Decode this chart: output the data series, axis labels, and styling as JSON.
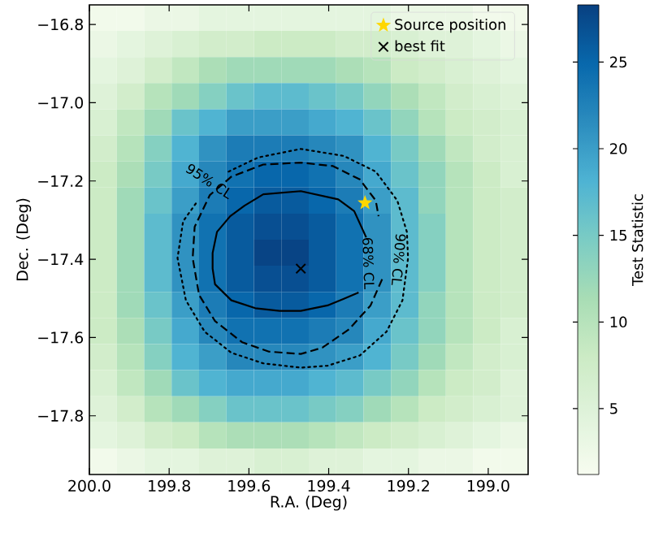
{
  "chart_data": {
    "type": "heatmap",
    "xlabel": "R.A. (Deg)",
    "ylabel": "Dec. (Deg)",
    "clabel": "Test Statistic",
    "xlim": [
      200.0,
      198.9
    ],
    "ylim": [
      -17.95,
      -16.75
    ],
    "xticks": [
      {
        "value": 200.0,
        "label": "200.0"
      },
      {
        "value": 199.8,
        "label": "199.8"
      },
      {
        "value": 199.6,
        "label": "199.6"
      },
      {
        "value": 199.4,
        "label": "199.4"
      },
      {
        "value": 199.2,
        "label": "199.2"
      },
      {
        "value": 199.0,
        "label": "199.0"
      }
    ],
    "yticks": [
      {
        "value": -16.8,
        "label": "−16.8"
      },
      {
        "value": -17.0,
        "label": "−17.0"
      },
      {
        "value": -17.2,
        "label": "−17.2"
      },
      {
        "value": -17.4,
        "label": "−17.4"
      },
      {
        "value": -17.6,
        "label": "−17.6"
      },
      {
        "value": -17.8,
        "label": "−17.8"
      }
    ],
    "clim": [
      1.2,
      28.3
    ],
    "cticks": [
      5,
      10,
      15,
      20,
      25
    ],
    "cells": [
      [
        2,
        2,
        3,
        3,
        4,
        4,
        4,
        4,
        4,
        4,
        4,
        3,
        3,
        3,
        2,
        2
      ],
      [
        3,
        4,
        5,
        6,
        7,
        7,
        8,
        8,
        8,
        7,
        7,
        6,
        5,
        5,
        4,
        3
      ],
      [
        4,
        5,
        7,
        9,
        11,
        12,
        12,
        12,
        12,
        11,
        10,
        8,
        7,
        6,
        5,
        4
      ],
      [
        5,
        7,
        10,
        12,
        14,
        16,
        17,
        17,
        16,
        15,
        13,
        11,
        9,
        7,
        6,
        5
      ],
      [
        6,
        9,
        12,
        16,
        18,
        20,
        20,
        20,
        19,
        18,
        16,
        13,
        10,
        8,
        7,
        6
      ],
      [
        7,
        10,
        14,
        18,
        21,
        23,
        23,
        23,
        22,
        21,
        18,
        15,
        12,
        9,
        7,
        6
      ],
      [
        8,
        11,
        15,
        19,
        22,
        24,
        25,
        25,
        24,
        22,
        19,
        16,
        13,
        10,
        8,
        6
      ],
      [
        8,
        12,
        16,
        20,
        23,
        25,
        26,
        26,
        25,
        23,
        20,
        17,
        13,
        10,
        8,
        7
      ],
      [
        8,
        12,
        17,
        21,
        24,
        26,
        27,
        27,
        26,
        24,
        21,
        17,
        14,
        10,
        8,
        7
      ],
      [
        8,
        12,
        17,
        21,
        24,
        26,
        28,
        28,
        26,
        24,
        21,
        17,
        14,
        10,
        8,
        7
      ],
      [
        8,
        12,
        17,
        21,
        24,
        26,
        27,
        27,
        26,
        24,
        21,
        17,
        14,
        10,
        8,
        7
      ],
      [
        8,
        12,
        16,
        20,
        23,
        25,
        26,
        26,
        25,
        23,
        20,
        17,
        13,
        10,
        8,
        7
      ],
      [
        8,
        11,
        15,
        19,
        22,
        24,
        24,
        24,
        23,
        22,
        19,
        16,
        13,
        10,
        8,
        6
      ],
      [
        7,
        10,
        14,
        18,
        20,
        22,
        22,
        22,
        21,
        20,
        18,
        15,
        12,
        9,
        7,
        6
      ],
      [
        6,
        9,
        12,
        16,
        18,
        19,
        19,
        19,
        18,
        17,
        15,
        13,
        10,
        8,
        7,
        5
      ],
      [
        5,
        7,
        10,
        12,
        14,
        16,
        16,
        16,
        15,
        14,
        12,
        10,
        8,
        7,
        6,
        5
      ],
      [
        4,
        5,
        7,
        8,
        10,
        11,
        11,
        11,
        10,
        9,
        8,
        7,
        6,
        5,
        4,
        3
      ],
      [
        2,
        3,
        4,
        4,
        5,
        5,
        6,
        6,
        5,
        5,
        4,
        4,
        3,
        3,
        2,
        2
      ]
    ],
    "series": [
      {
        "type": "line",
        "color": "#000000",
        "line_style": "solid",
        "x": [
          199.306,
          199.336,
          199.376,
          199.47,
          199.564,
          199.611,
          199.647,
          199.68,
          199.691,
          199.691,
          199.685,
          199.644,
          199.584,
          199.523,
          199.47,
          199.403,
          199.362,
          199.325
        ],
        "values": [
          -17.344,
          -17.277,
          -17.247,
          -17.226,
          -17.234,
          -17.263,
          -17.29,
          -17.33,
          -17.384,
          -17.424,
          -17.464,
          -17.505,
          -17.525,
          -17.532,
          -17.532,
          -17.518,
          -17.501,
          -17.485
        ]
      },
      {
        "type": "line",
        "color": "#000000",
        "line_style": "dashed",
        "x": [
          199.266,
          199.295,
          199.349,
          199.416,
          199.47,
          199.55,
          199.617,
          199.685,
          199.725,
          199.741,
          199.736,
          199.698,
          199.644,
          199.564,
          199.47,
          199.389,
          199.322,
          199.282,
          199.275
        ],
        "values": [
          -17.451,
          -17.518,
          -17.579,
          -17.626,
          -17.642,
          -17.636,
          -17.612,
          -17.558,
          -17.491,
          -17.397,
          -17.317,
          -17.236,
          -17.189,
          -17.158,
          -17.153,
          -17.162,
          -17.196,
          -17.25,
          -17.29
        ]
      },
      {
        "type": "line",
        "color": "#000000",
        "line_style": "dotted",
        "x": [
          199.651,
          199.577,
          199.47,
          199.362,
          199.282,
          199.228,
          199.204,
          199.201,
          199.215,
          199.255,
          199.322,
          199.403,
          199.47,
          199.564,
          199.644,
          199.711,
          199.758,
          199.779,
          199.765,
          199.732
        ],
        "values": [
          -17.176,
          -17.14,
          -17.118,
          -17.136,
          -17.176,
          -17.25,
          -17.33,
          -17.397,
          -17.505,
          -17.585,
          -17.646,
          -17.672,
          -17.677,
          -17.666,
          -17.639,
          -17.585,
          -17.505,
          -17.397,
          -17.303,
          -17.256
        ]
      },
      {
        "type": "scatter",
        "name": "Source position",
        "color": "#ffd700",
        "marker": "star",
        "x": [
          199.309
        ],
        "values": [
          -17.256
        ]
      },
      {
        "type": "scatter",
        "name": "best fit",
        "color": "#000000",
        "marker": "cross",
        "x": [
          199.47
        ],
        "values": [
          -17.424
        ]
      }
    ],
    "legend": "top right",
    "annotations": [
      "68% CL",
      "90% CL",
      "95% CL"
    ]
  }
}
